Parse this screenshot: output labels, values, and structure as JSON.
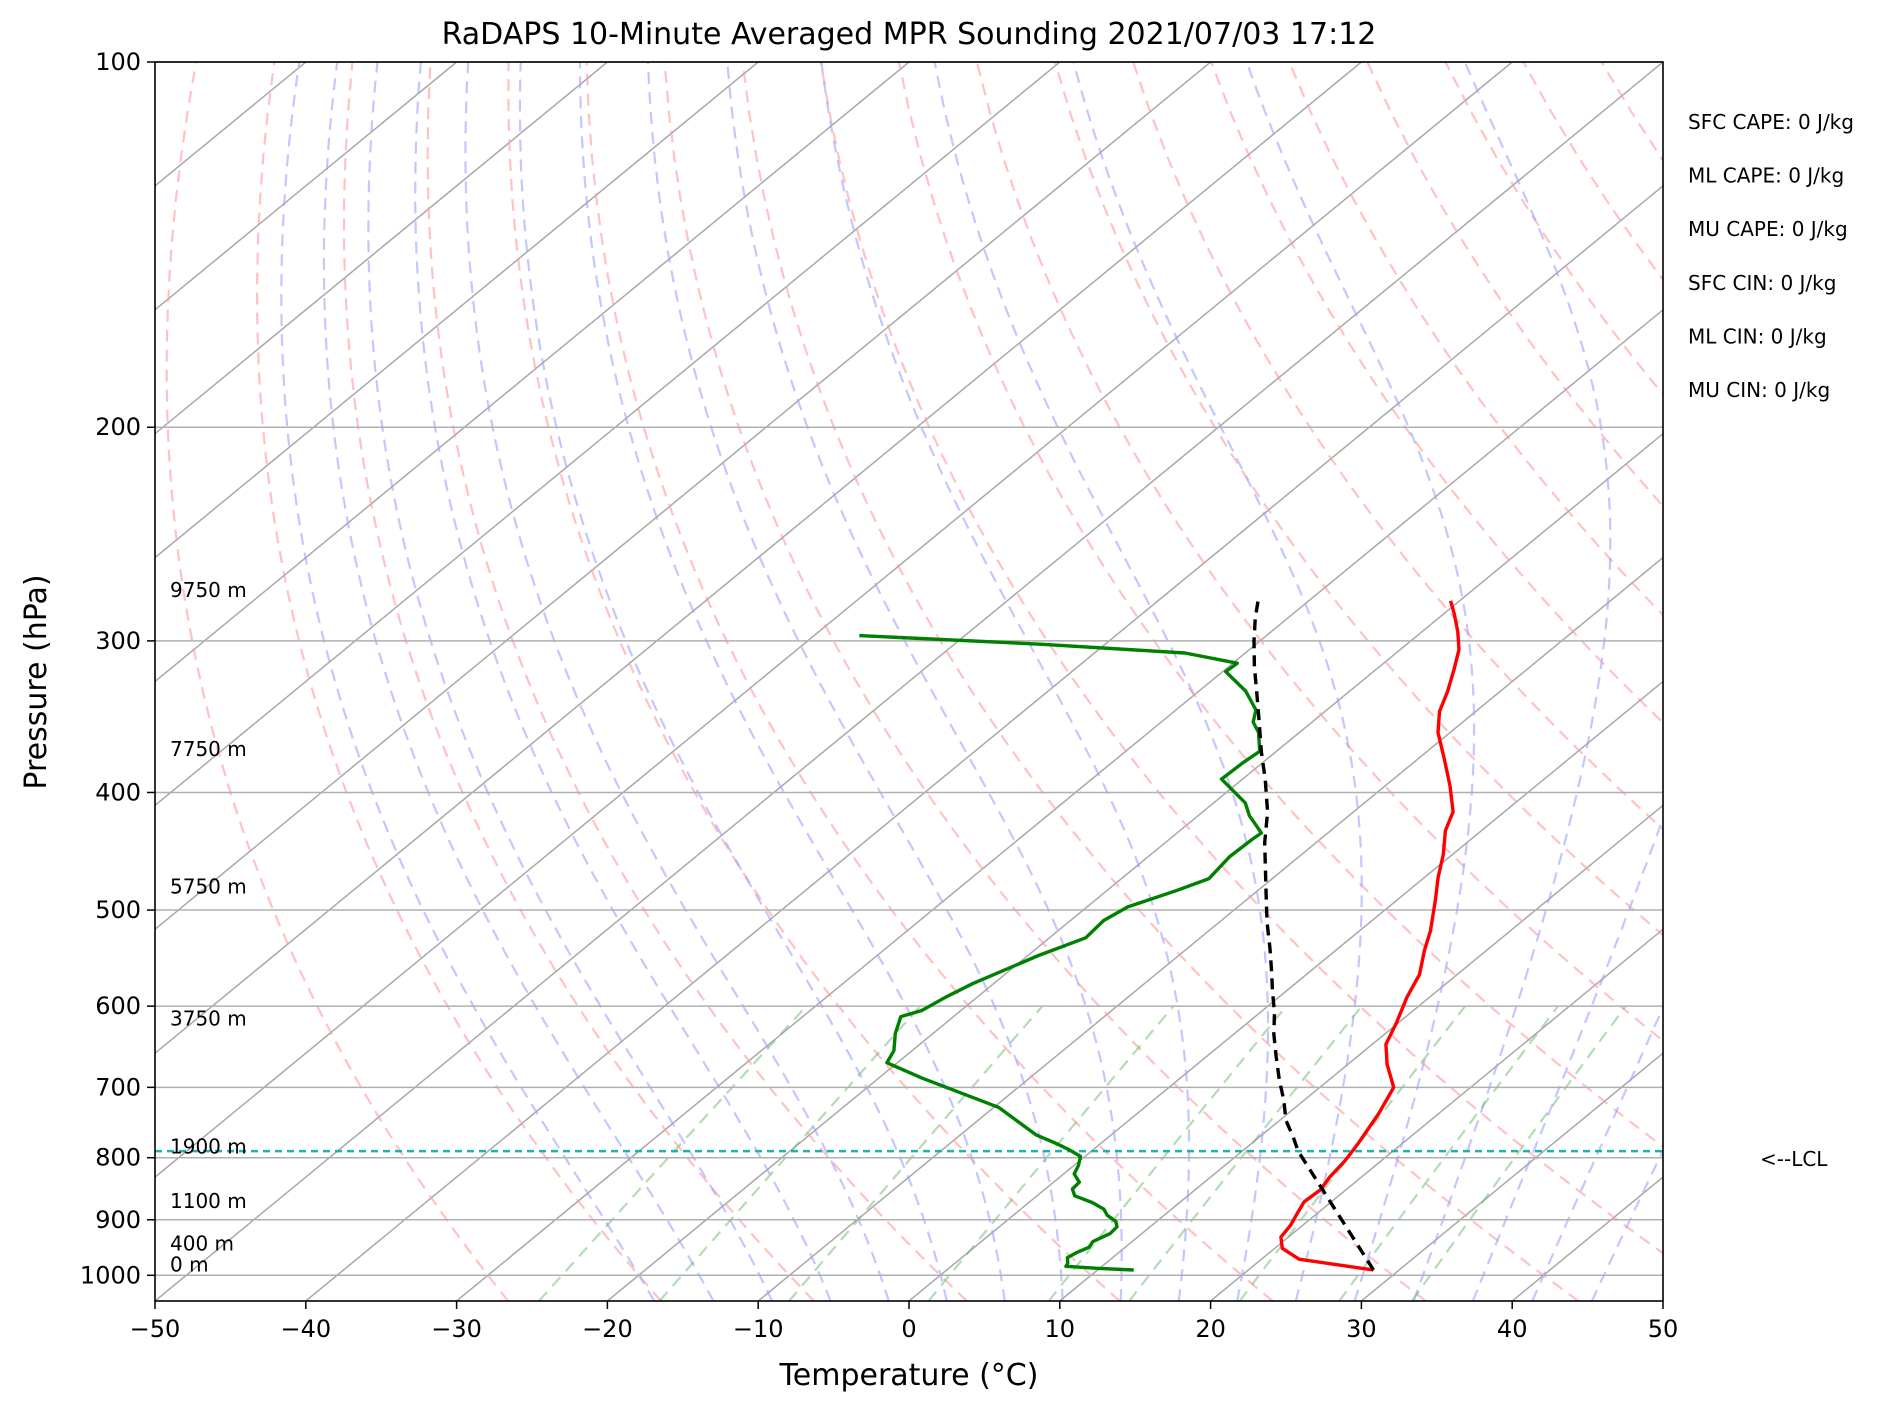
{
  "chart_data": {
    "type": "line",
    "subtype": "skew-t log-p sounding",
    "title": "RaDAPS 10-Minute Averaged MPR Sounding 2021/07/03 17:12",
    "xlabel": "Temperature (°C)",
    "ylabel": "Pressure (hPa)",
    "xlim": [
      -50,
      50
    ],
    "ylim": [
      1050,
      100
    ],
    "y_scale": "log",
    "grid": true,
    "x_ticks": [
      "−50",
      "−40",
      "−30",
      "−20",
      "−10",
      "0",
      "10",
      "20",
      "30",
      "40",
      "50"
    ],
    "x_tick_values": [
      -50,
      -40,
      -30,
      -20,
      -10,
      0,
      10,
      20,
      30,
      40,
      50
    ],
    "y_ticks": [
      "1000",
      "900",
      "800",
      "700",
      "600",
      "500",
      "400",
      "300",
      "200",
      "100"
    ],
    "y_tick_values": [
      1000,
      900,
      800,
      700,
      600,
      500,
      400,
      300,
      200,
      100
    ],
    "series": [
      {
        "role": "temperature",
        "color": "#ff0000",
        "points": [
          [
            28.3,
            990
          ],
          [
            22.5,
            970
          ],
          [
            20.5,
            950
          ],
          [
            19.5,
            930
          ],
          [
            19.2,
            910
          ],
          [
            18.7,
            890
          ],
          [
            18.2,
            870
          ],
          [
            18.3,
            850
          ],
          [
            17.9,
            830
          ],
          [
            17.6,
            805
          ],
          [
            17.1,
            780
          ],
          [
            16.0,
            735
          ],
          [
            14.9,
            700
          ],
          [
            12.6,
            670
          ],
          [
            10.9,
            645
          ],
          [
            9.9,
            620
          ],
          [
            8.5,
            590
          ],
          [
            7.5,
            565
          ],
          [
            5.9,
            540
          ],
          [
            4.7,
            520
          ],
          [
            2.5,
            490
          ],
          [
            0.9,
            470
          ],
          [
            -0.6,
            450
          ],
          [
            -2.4,
            430
          ],
          [
            -3.4,
            415
          ],
          [
            -5.7,
            395
          ],
          [
            -8.3,
            375
          ],
          [
            -10.8,
            357
          ],
          [
            -12.4,
            343
          ],
          [
            -13.5,
            330
          ],
          [
            -14.8,
            317
          ],
          [
            -16.1,
            305
          ],
          [
            -17.6,
            295
          ],
          [
            -19.3,
            285
          ],
          [
            -20.6,
            278
          ]
        ]
      },
      {
        "role": "dewpoint",
        "color": "#008000",
        "points": [
          [
            12.4,
            990
          ],
          [
            10.0,
            987
          ],
          [
            7.6,
            983
          ],
          [
            7.5,
            978
          ],
          [
            7.0,
            967
          ],
          [
            7.2,
            958
          ],
          [
            7.6,
            948
          ],
          [
            7.4,
            938
          ],
          [
            7.9,
            924
          ],
          [
            7.8,
            912
          ],
          [
            7.3,
            903
          ],
          [
            6.2,
            892
          ],
          [
            5.5,
            882
          ],
          [
            4.2,
            871
          ],
          [
            2.5,
            860
          ],
          [
            1.8,
            849
          ],
          [
            1.7,
            838
          ],
          [
            0.7,
            825
          ],
          [
            0.3,
            812
          ],
          [
            -0.3,
            798
          ],
          [
            -1.6,
            788
          ],
          [
            -2.9,
            779
          ],
          [
            -5.0,
            766
          ],
          [
            -9.7,
            727
          ],
          [
            -17.1,
            688
          ],
          [
            -20.7,
            668
          ],
          [
            -21.2,
            653
          ],
          [
            -22.5,
            632
          ],
          [
            -23.5,
            612
          ],
          [
            -22.6,
            605
          ],
          [
            -22.1,
            590
          ],
          [
            -21.4,
            575
          ],
          [
            -19.3,
            545
          ],
          [
            -17.6,
            527
          ],
          [
            -17.8,
            510
          ],
          [
            -17.3,
            497
          ],
          [
            -15.4,
            482
          ],
          [
            -14.2,
            471
          ],
          [
            -14.6,
            452
          ],
          [
            -14.5,
            437
          ],
          [
            -14.4,
            432
          ],
          [
            -16.6,
            418
          ],
          [
            -17.9,
            408
          ],
          [
            -21.4,
            390
          ],
          [
            -21.3,
            378
          ],
          [
            -21.1,
            370
          ],
          [
            -22.7,
            357
          ],
          [
            -23.9,
            350
          ],
          [
            -24.7,
            342
          ],
          [
            -26.9,
            330
          ],
          [
            -29.8,
            318
          ],
          [
            -29.7,
            313
          ],
          [
            -34.0,
            307
          ],
          [
            -44.0,
            302
          ],
          [
            -57.0,
            297
          ]
        ]
      },
      {
        "role": "parcel",
        "color": "#000000",
        "style": "dashed",
        "points": [
          [
            28.3,
            990
          ],
          [
            13.7,
            790
          ],
          [
            12.3,
            770
          ],
          [
            10.4,
            745
          ],
          [
            8.7,
            718
          ],
          [
            6.7,
            690
          ],
          [
            4.6,
            660
          ],
          [
            2.6,
            632
          ],
          [
            1.0,
            608
          ],
          [
            -1.0,
            582
          ],
          [
            -2.3,
            565
          ],
          [
            -4.5,
            538
          ],
          [
            -6.8,
            512
          ],
          [
            -8.9,
            488
          ],
          [
            -11.0,
            465
          ],
          [
            -13.4,
            440
          ],
          [
            -15.7,
            415
          ],
          [
            -18.5,
            390
          ],
          [
            -21.0,
            370
          ],
          [
            -23.5,
            350
          ],
          [
            -25.9,
            332
          ],
          [
            -28.3,
            315
          ],
          [
            -30.4,
            300
          ],
          [
            -32.2,
            287
          ],
          [
            -33.5,
            277
          ]
        ]
      }
    ],
    "lcl": {
      "label": "<--LCL",
      "pressure": 790
    },
    "height_labels": [
      {
        "text": "9750 m",
        "pressure": 278
      },
      {
        "text": "7750 m",
        "pressure": 376
      },
      {
        "text": "5750 m",
        "pressure": 488
      },
      {
        "text": "3750 m",
        "pressure": 627
      },
      {
        "text": "1900 m",
        "pressure": 800
      },
      {
        "text": "1100 m",
        "pressure": 887
      },
      {
        "text": "400 m",
        "pressure": 961
      },
      {
        "text": "0 m",
        "pressure": 1000
      }
    ],
    "indices": [
      "SFC CAPE: 0 J/kg",
      "ML CAPE: 0 J/kg",
      "MU CAPE: 0 J/kg",
      "SFC CIN: 0 J/kg",
      "ML CIN: 0 J/kg",
      "MU CIN: 0 J/kg"
    ],
    "background_lines": {
      "isotherms": "grey solid",
      "dry_adiabats": "red dashed",
      "moist_adiabats": "blue dashed",
      "mixing_ratio": "green dashed"
    }
  }
}
